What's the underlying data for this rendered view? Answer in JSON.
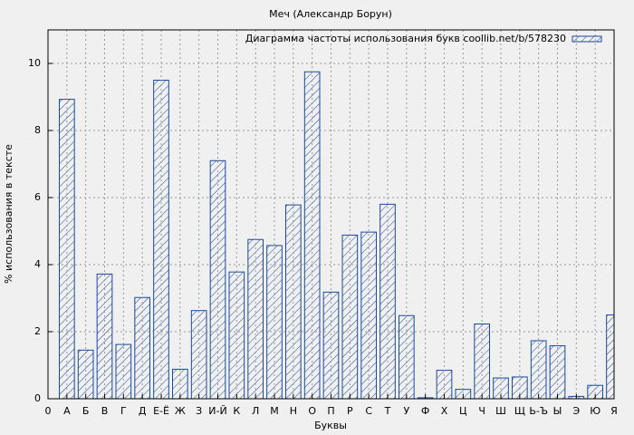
{
  "chart_data": {
    "type": "bar",
    "title": "Меч (Александр Борун)",
    "x_label": "Буквы",
    "y_label": "% использования в тексте",
    "x": [
      1,
      2,
      3,
      4,
      5,
      6,
      7,
      8,
      9,
      10,
      11,
      12,
      13,
      14,
      15,
      16,
      17,
      18,
      19,
      20,
      21,
      22,
      23,
      24,
      25,
      26,
      27,
      28,
      29,
      30
    ],
    "series": [
      {
        "name": "Диаграмма частоты использования букв coollib.net/b/578230",
        "color": "#1a4a9c",
        "values": [
          8.93,
          1.45,
          3.72,
          1.62,
          3.02,
          9.5,
          0.88,
          2.63,
          7.1,
          3.78,
          4.75,
          4.57,
          5.78,
          9.75,
          3.18,
          4.88,
          4.97,
          5.8,
          2.48,
          0.03,
          0.85,
          0.28,
          2.23,
          0.62,
          0.65,
          1.73,
          1.58,
          0.07,
          0.4,
          2.5
        ]
      }
    ],
    "xlim": [
      0,
      30
    ],
    "xticks": [
      0,
      {
        "value": 1,
        "label": "А"
      },
      {
        "value": 2,
        "label": "Б"
      },
      {
        "value": 3,
        "label": "В"
      },
      {
        "value": 4,
        "label": "Г"
      },
      {
        "value": 5,
        "label": "Д"
      },
      {
        "value": 6,
        "label": "Е-Ё"
      },
      {
        "value": 7,
        "label": "Ж"
      },
      {
        "value": 8,
        "label": "З"
      },
      {
        "value": 9,
        "label": "И-Й"
      },
      {
        "value": 10,
        "label": "К"
      },
      {
        "value": 11,
        "label": "Л"
      },
      {
        "value": 12,
        "label": "М"
      },
      {
        "value": 13,
        "label": "Н"
      },
      {
        "value": 14,
        "label": "О"
      },
      {
        "value": 15,
        "label": "П"
      },
      {
        "value": 16,
        "label": "Р"
      },
      {
        "value": 17,
        "label": "С"
      },
      {
        "value": 18,
        "label": "Т"
      },
      {
        "value": 19,
        "label": "У"
      },
      {
        "value": 20,
        "label": "Ф"
      },
      {
        "value": 21,
        "label": "Х"
      },
      {
        "value": 22,
        "label": "Ц"
      },
      {
        "value": 23,
        "label": "Ч"
      },
      {
        "value": 24,
        "label": "Ш"
      },
      {
        "value": 25,
        "label": "Щ"
      },
      {
        "value": 26,
        "label": "Ь-Ъ"
      },
      {
        "value": 27,
        "label": "Ы"
      },
      {
        "value": 28,
        "label": "Э"
      },
      {
        "value": 29,
        "label": "Ю"
      },
      {
        "value": 30,
        "label": "Я"
      }
    ],
    "ylim": [
      0,
      11
    ],
    "yticks": [
      0,
      2,
      4,
      6,
      8,
      10
    ],
    "grid": true,
    "legend": "top-right"
  }
}
